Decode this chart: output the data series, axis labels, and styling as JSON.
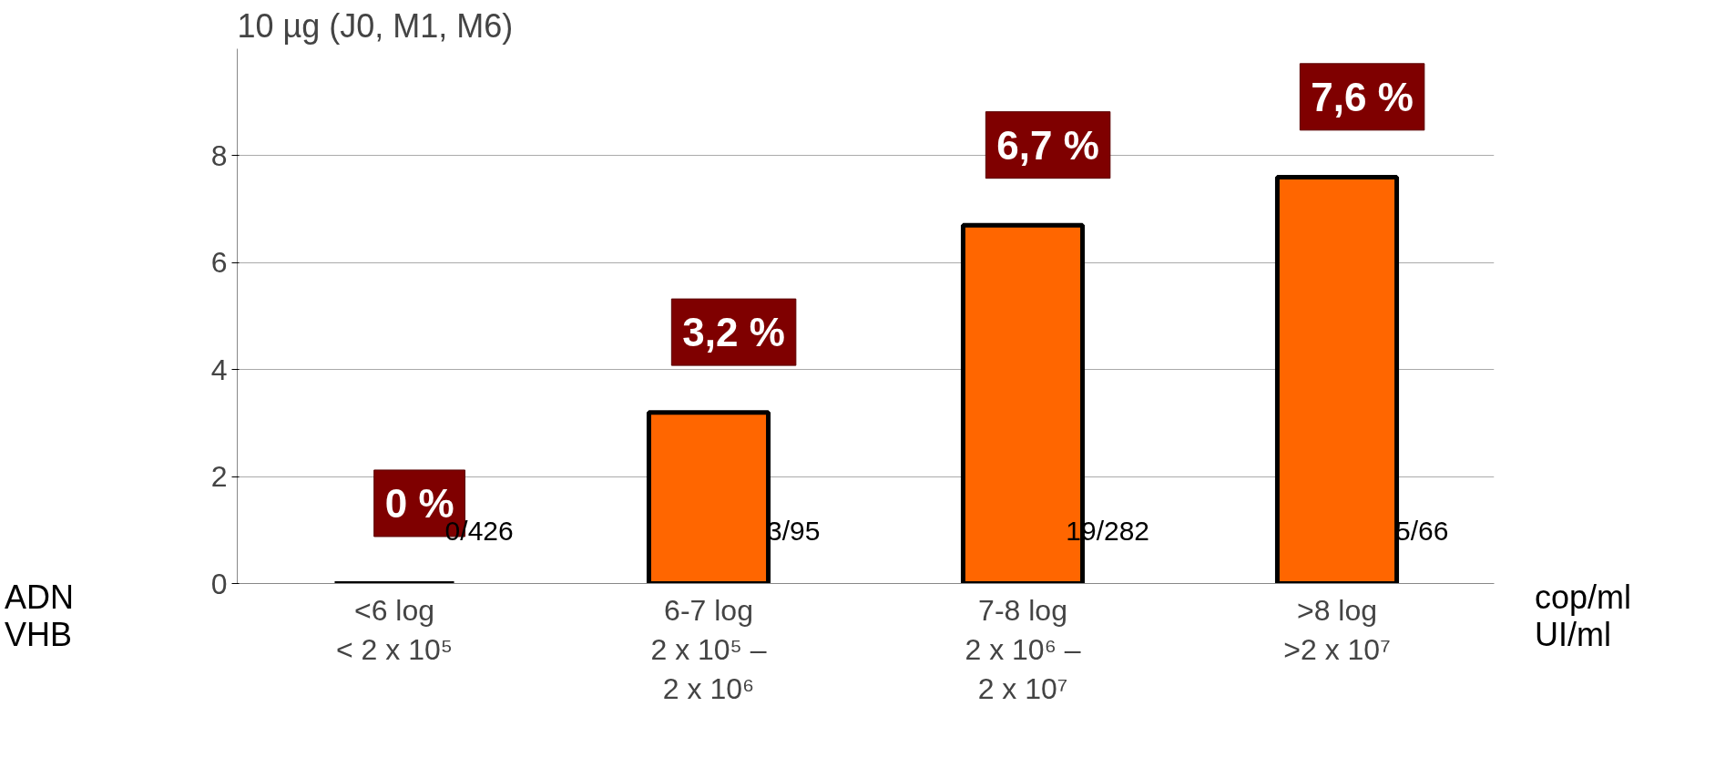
{
  "chart_data": {
    "type": "bar",
    "title": "10 µg (J0, M1, M6)",
    "categories": [
      "<6 log\n< 2 x 10⁵",
      "6-7 log\n2 x 10⁵ –\n2 x 10⁶",
      "7-8 log\n2 x 10⁶ –\n2 x 10⁷",
      ">8 log\n>2 x 10⁷"
    ],
    "values": [
      0,
      3.2,
      6.7,
      7.6
    ],
    "colors": [
      "#000000",
      "#ff6600",
      "#ff6600",
      "#ff6600"
    ],
    "value_labels": [
      "0 %",
      "3,2 %",
      "6,7 %",
      "7,6 %"
    ],
    "ylim": [
      0,
      10
    ],
    "yticks": [
      0,
      2,
      4,
      6,
      8
    ],
    "grid": "y",
    "annotations": [
      "0/426",
      "3/95",
      "19/282",
      "5/66",
      "ADN\nVHB",
      "cop/ml\nUI/ml"
    ]
  }
}
